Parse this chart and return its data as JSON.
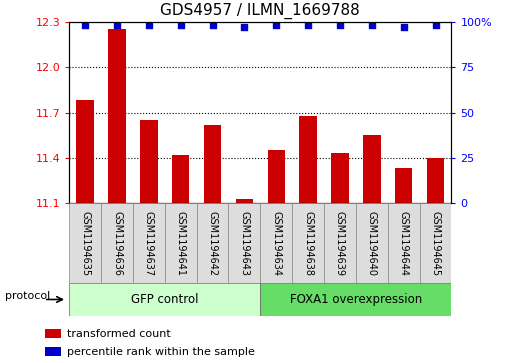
{
  "title": "GDS4957 / ILMN_1669788",
  "categories": [
    "GSM1194635",
    "GSM1194636",
    "GSM1194637",
    "GSM1194641",
    "GSM1194642",
    "GSM1194643",
    "GSM1194634",
    "GSM1194638",
    "GSM1194639",
    "GSM1194640",
    "GSM1194644",
    "GSM1194645"
  ],
  "bar_values": [
    11.78,
    12.25,
    11.65,
    11.42,
    11.62,
    11.13,
    11.45,
    11.68,
    11.43,
    11.55,
    11.33,
    11.4
  ],
  "percentile_values": [
    98,
    98,
    98,
    98,
    98,
    97,
    98,
    98,
    98,
    98,
    97,
    98
  ],
  "bar_color": "#cc0000",
  "dot_color": "#0000cc",
  "ylim_left": [
    11.1,
    12.3
  ],
  "ylim_right": [
    0,
    100
  ],
  "yticks_left": [
    11.1,
    11.4,
    11.7,
    12.0,
    12.3
  ],
  "yticks_right": [
    0,
    25,
    50,
    75,
    100
  ],
  "group1_label": "GFP control",
  "group2_label": "FOXA1 overexpression",
  "group1_count": 6,
  "group2_count": 6,
  "legend_bar_label": "transformed count",
  "legend_dot_label": "percentile rank within the sample",
  "group1_color": "#ccffcc",
  "group2_color": "#66dd66",
  "protocol_label": "protocol",
  "bar_width": 0.55,
  "cell_color": "#dddddd",
  "title_fontsize": 11,
  "tick_fontsize": 8,
  "label_fontsize": 7
}
